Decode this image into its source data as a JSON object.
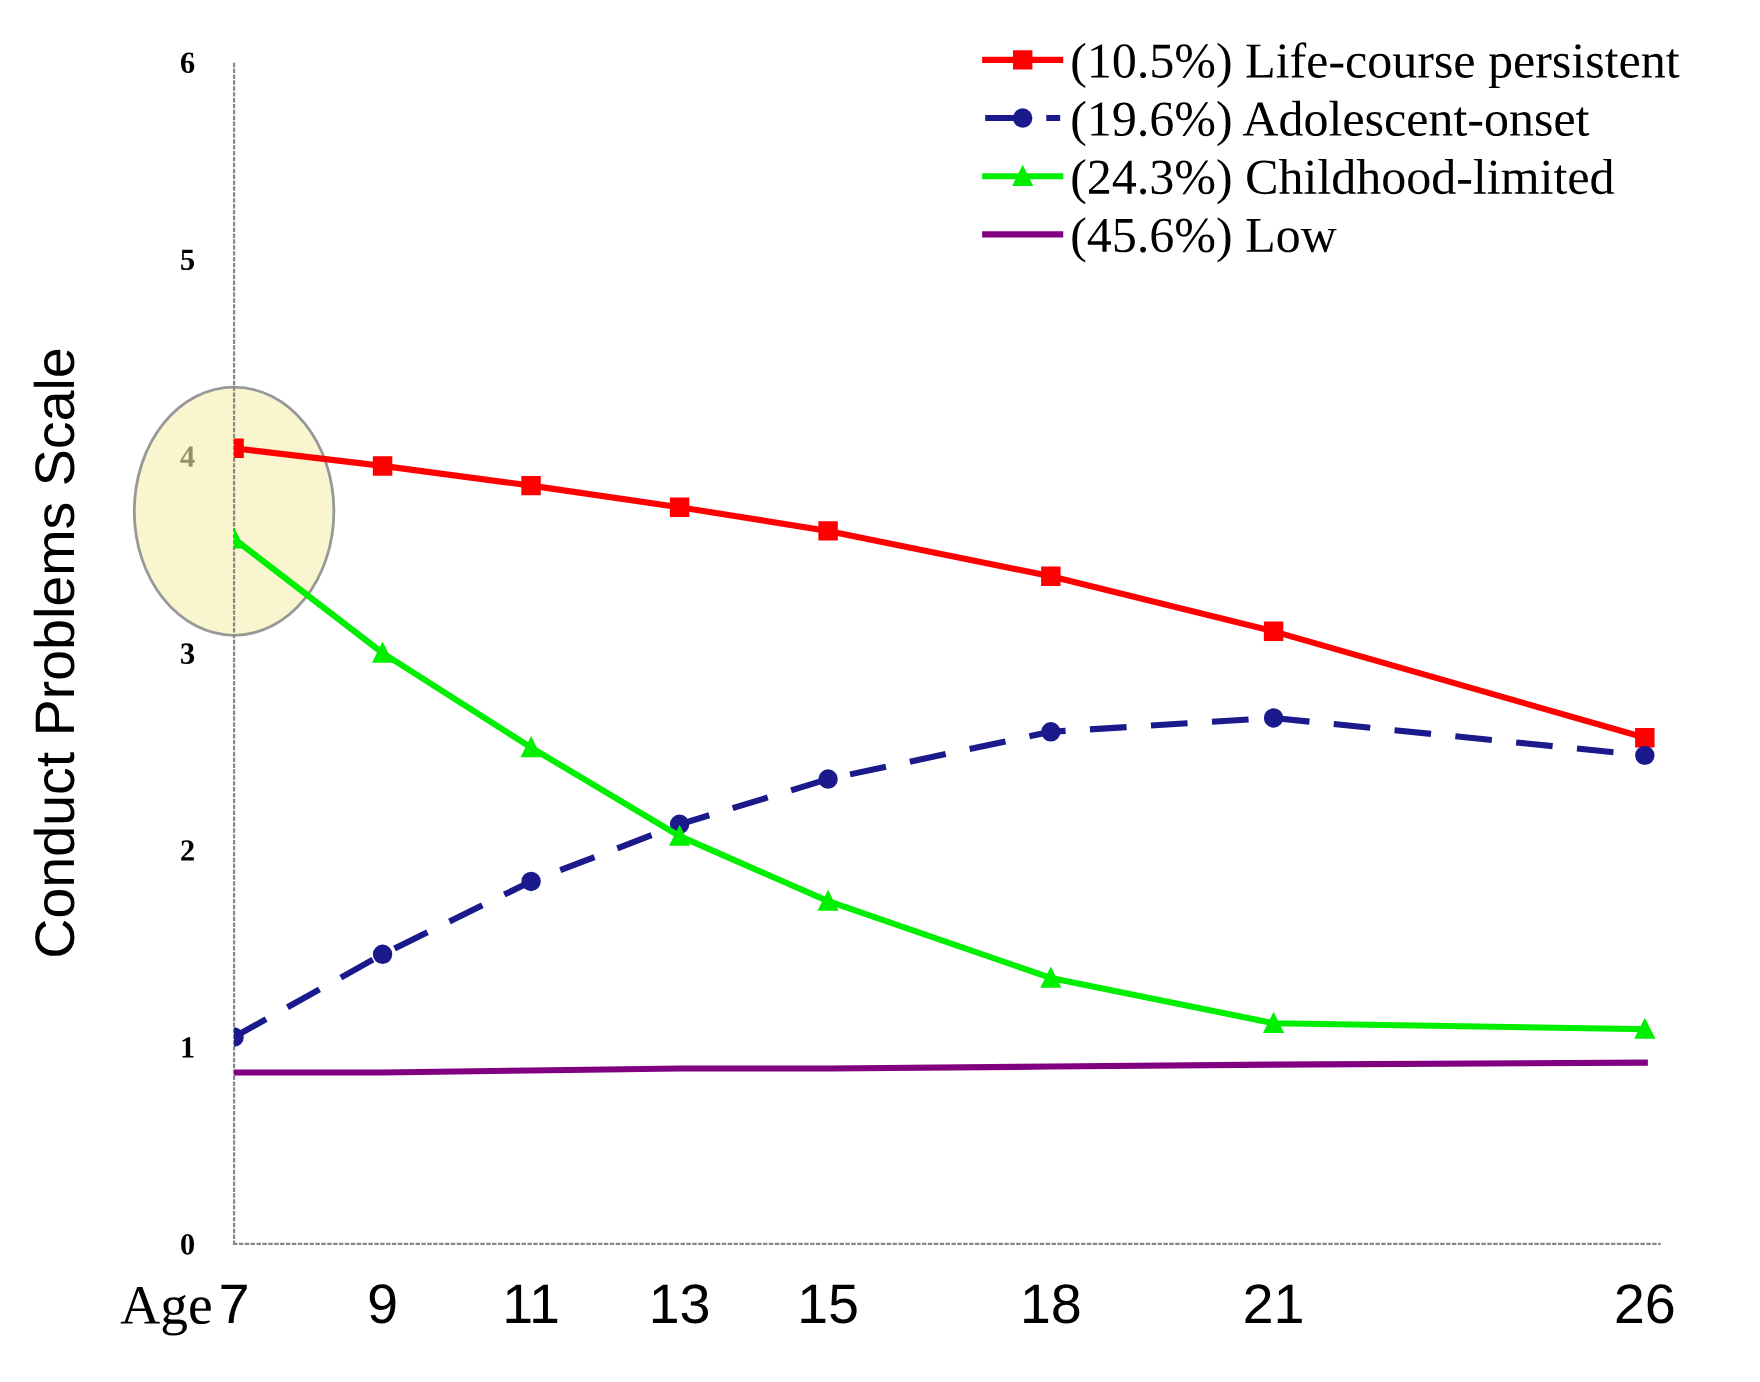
{
  "chart_data": {
    "type": "line",
    "ylabel": "Conduct Problems Scale",
    "xlabel": "Age",
    "x": [
      7,
      9,
      11,
      13,
      15,
      18,
      21,
      26
    ],
    "xlim": [
      7,
      26.2
    ],
    "xticks": [
      7,
      9,
      11,
      13,
      15,
      18,
      21,
      26
    ],
    "ylim": [
      0,
      6
    ],
    "yticks": [
      0,
      1,
      2,
      3,
      4,
      5,
      6
    ],
    "grid": false,
    "legend": "top right",
    "series": [
      {
        "name": "(10.5%) Life-course persistent",
        "color": "#ff0000",
        "marker": "square",
        "line_style": "solid",
        "values": [
          4.04,
          3.95,
          3.85,
          3.74,
          3.62,
          3.39,
          3.11,
          2.57
        ]
      },
      {
        "name": "(19.6%) Adolescent-onset",
        "color": "#1a1a8c",
        "marker": "circle",
        "line_style": "dashed",
        "values": [
          1.05,
          1.47,
          1.84,
          2.13,
          2.36,
          2.6,
          2.67,
          2.48
        ]
      },
      {
        "name": "(24.3%) Childhood-limited",
        "color": "#00ee00",
        "marker": "triangle",
        "line_style": "solid",
        "values": [
          3.58,
          3.0,
          2.52,
          2.07,
          1.74,
          1.35,
          1.12,
          1.09
        ]
      },
      {
        "name": "(45.6%) Low",
        "color": "#800080",
        "marker": "none",
        "line_style": "solid",
        "values": [
          0.87,
          0.87,
          0.88,
          0.89,
          0.89,
          0.9,
          0.91,
          0.92
        ]
      }
    ]
  }
}
